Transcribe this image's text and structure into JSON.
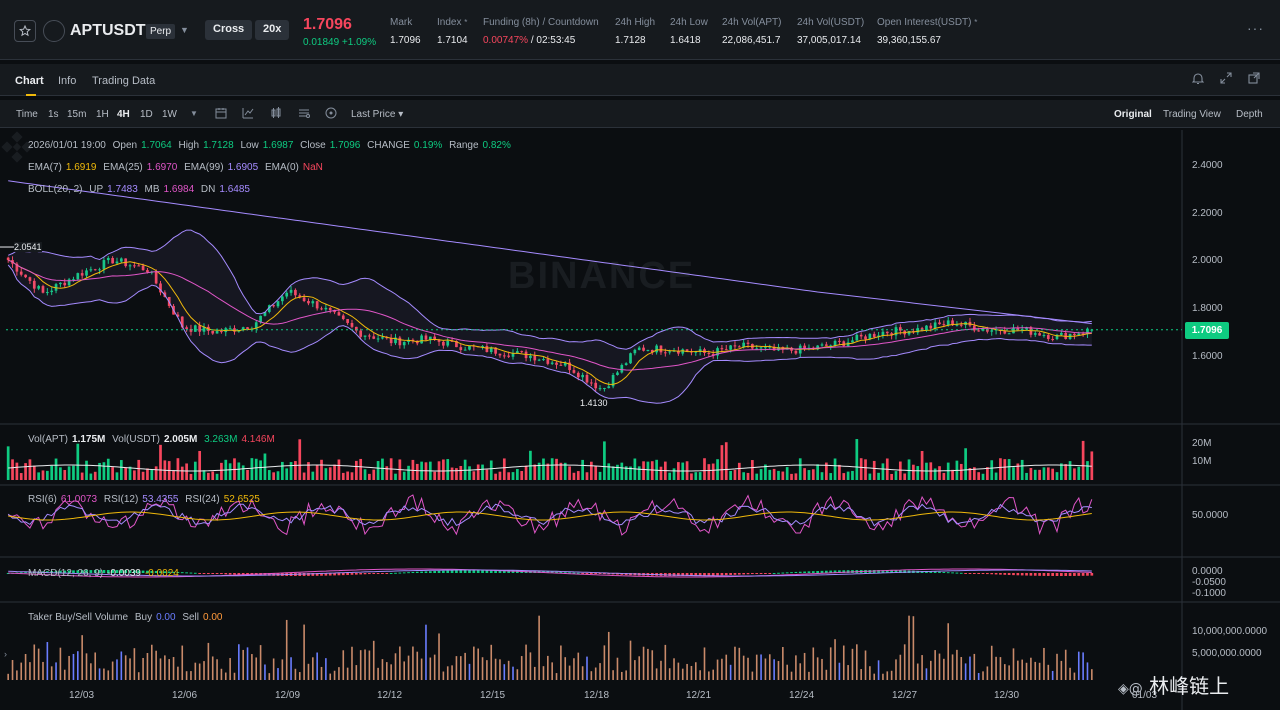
{
  "header": {
    "symbol": "APTUSDT",
    "contract_type": "Perp",
    "margin_mode": "Cross",
    "leverage": "20x",
    "last_price": "1.7096",
    "change": "0.01849 +1.09%",
    "stats": [
      {
        "label": "Mark",
        "value": "1.7096"
      },
      {
        "label": "Index",
        "value": "1.7104"
      },
      {
        "label": "Funding (8h) / Countdown",
        "value_red": "0.00747%",
        "value": " / 02:53:45"
      },
      {
        "label": "24h High",
        "value": "1.7128"
      },
      {
        "label": "24h Low",
        "value": "1.6418"
      },
      {
        "label": "24h Vol(APT)",
        "value": "22,086,451.7"
      },
      {
        "label": "24h Vol(USDT)",
        "value": "37,005,017.14"
      },
      {
        "label": "Open Interest(USDT)",
        "value": "39,360,155.67"
      }
    ],
    "more": "···"
  },
  "tabs": [
    "Chart",
    "Info",
    "Trading Data"
  ],
  "toolbar": {
    "time_label": "Time",
    "intervals": [
      "1s",
      "15m",
      "1H",
      "4H",
      "1D",
      "1W"
    ],
    "active_interval": "4H",
    "price_mode": "Last Price ▾",
    "views": [
      "Original",
      "Trading View",
      "Depth"
    ],
    "active_view": "Original"
  },
  "legend": {
    "ohlc": {
      "date": "2026/01/01 19:00",
      "open_label": "Open",
      "open": "1.7064",
      "high_label": "High",
      "high": "1.7128",
      "low_label": "Low",
      "low": "1.6987",
      "close_label": "Close",
      "close": "1.7096",
      "change_label": "CHANGE",
      "change": "0.19%",
      "range_label": "Range",
      "range": "0.82%"
    },
    "ema": {
      "ema7_label": "EMA(7)",
      "ema7": "1.6919",
      "ema25_label": "EMA(25)",
      "ema25": "1.6970",
      "ema99_label": "EMA(99)",
      "ema99": "1.6905",
      "ema0_label": "EMA(0)",
      "ema0": "NaN"
    },
    "boll": {
      "label": "BOLL(20, 2)",
      "up_label": "UP",
      "up": "1.7483",
      "mb_label": "MB",
      "mb": "1.6984",
      "dn_label": "DN",
      "dn": "1.6485"
    },
    "vol": {
      "apt_label": "Vol(APT)",
      "apt": "1.175M",
      "usdt_label": "Vol(USDT)",
      "usdt": "2.005M",
      "ma1": "3.263M",
      "ma2": "4.146M"
    },
    "rsi": {
      "rsi6_label": "RSI(6)",
      "rsi6": "61.0073",
      "rsi12_label": "RSI(12)",
      "rsi12": "53.4355",
      "rsi24_label": "RSI(24)",
      "rsi24": "52.6525"
    },
    "macd": {
      "label": "MACD(12, 26, 9)",
      "v1": "-0.0039",
      "v2": "-0.0024"
    },
    "taker": {
      "label": "Taker Buy/Sell Volume",
      "buy_label": "Buy",
      "buy": "0.00",
      "sell_label": "Sell",
      "sell": "0.00"
    }
  },
  "axis": {
    "price_ticks": [
      "2.4000",
      "2.2000",
      "2.0000",
      "1.8000",
      "1.6000"
    ],
    "vol_ticks": [
      "20M",
      "10M"
    ],
    "rsi_ticks": [
      "50.0000"
    ],
    "macd_ticks": [
      "0.0000",
      "-0.0500",
      "-0.1000"
    ],
    "taker_ticks": [
      "10,000,000.0000",
      "5,000,000.0000"
    ],
    "dates": [
      "12/03",
      "12/06",
      "12/09",
      "12/12",
      "12/15",
      "12/18",
      "12/21",
      "12/24",
      "12/27",
      "12/30",
      "01/03"
    ],
    "current_price": "1.7096",
    "marked_high": "2.0541",
    "marked_low": "1.4130"
  },
  "watermark": "BINANCE",
  "credit": {
    "at": "@",
    "name": "林峰链上"
  },
  "chart_data": {
    "type": "candlestick",
    "symbol": "APTUSDT",
    "interval": "4H",
    "x_range": [
      "12/03",
      "01/03"
    ],
    "ylim": [
      1.4,
      2.45
    ],
    "y_ticks": [
      1.6,
      1.8,
      2.0,
      2.2,
      2.4
    ],
    "close_path": [
      {
        "x": "12/01",
        "close": 2.0
      },
      {
        "x": "12/02",
        "close": 1.86
      },
      {
        "x": "12/03",
        "close": 1.94
      },
      {
        "x": "12/04",
        "close": 2.0
      },
      {
        "x": "12/05",
        "close": 1.96
      },
      {
        "x": "12/06",
        "close": 1.72
      },
      {
        "x": "12/07",
        "close": 1.7
      },
      {
        "x": "12/08",
        "close": 1.73
      },
      {
        "x": "12/09",
        "close": 1.87
      },
      {
        "x": "12/10",
        "close": 1.8
      },
      {
        "x": "12/11",
        "close": 1.7
      },
      {
        "x": "12/12",
        "close": 1.66
      },
      {
        "x": "12/13",
        "close": 1.67
      },
      {
        "x": "12/14",
        "close": 1.64
      },
      {
        "x": "12/15",
        "close": 1.62
      },
      {
        "x": "12/16",
        "close": 1.6
      },
      {
        "x": "12/17",
        "close": 1.56
      },
      {
        "x": "12/18",
        "close": 1.46
      },
      {
        "x": "12/19",
        "close": 1.63
      },
      {
        "x": "12/20",
        "close": 1.63
      },
      {
        "x": "12/21",
        "close": 1.61
      },
      {
        "x": "12/22",
        "close": 1.64
      },
      {
        "x": "12/23",
        "close": 1.62
      },
      {
        "x": "12/24",
        "close": 1.63
      },
      {
        "x": "12/25",
        "close": 1.66
      },
      {
        "x": "12/26",
        "close": 1.7
      },
      {
        "x": "12/27",
        "close": 1.71
      },
      {
        "x": "12/28",
        "close": 1.74
      },
      {
        "x": "12/29",
        "close": 1.71
      },
      {
        "x": "12/30",
        "close": 1.71
      },
      {
        "x": "12/31",
        "close": 1.68
      },
      {
        "x": "01/01",
        "close": 1.7096
      }
    ],
    "last": {
      "open": 1.7064,
      "high": 1.7128,
      "low": 1.6987,
      "close": 1.7096
    },
    "marked_high": 2.0541,
    "marked_low": 1.413
  }
}
